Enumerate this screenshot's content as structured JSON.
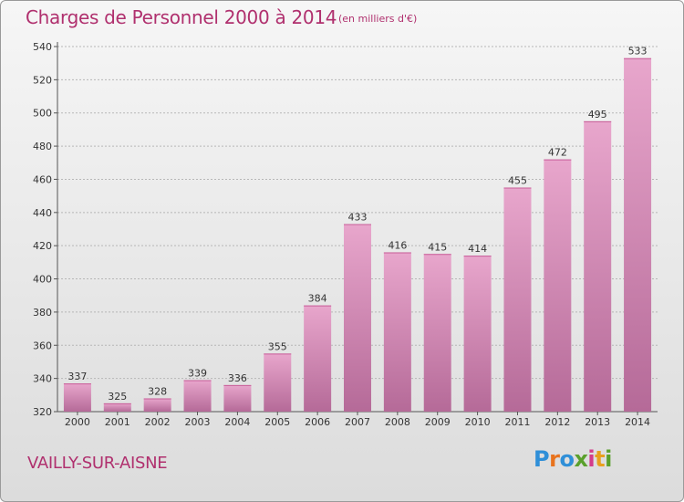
{
  "header": {
    "title": "Charges de Personnel 2000 à 2014",
    "subtitle": "(en milliers d'€)"
  },
  "footer": {
    "commune": "VAILLY-SUR-AISNE",
    "logo_text": "Proxiti"
  },
  "colors": {
    "title": "#b0306e",
    "bar_top": "#e8a6cc",
    "bar_bottom": "#b56a98",
    "grid": "#b7b7b7"
  },
  "chart_data": {
    "type": "bar",
    "title": "Charges de Personnel 2000 à 2014",
    "subtitle": "(en milliers d'€)",
    "xlabel": "",
    "ylabel": "",
    "categories": [
      "2000",
      "2001",
      "2002",
      "2003",
      "2004",
      "2005",
      "2006",
      "2007",
      "2008",
      "2009",
      "2010",
      "2011",
      "2012",
      "2013",
      "2014"
    ],
    "values": [
      337,
      325,
      328,
      339,
      336,
      355,
      384,
      433,
      416,
      415,
      414,
      455,
      472,
      495,
      533
    ],
    "ylim": [
      320,
      540
    ],
    "yticks": [
      320,
      340,
      360,
      380,
      400,
      420,
      440,
      460,
      480,
      500,
      520,
      540
    ],
    "grid": true,
    "grid_axis": "y",
    "data_labels": true
  }
}
